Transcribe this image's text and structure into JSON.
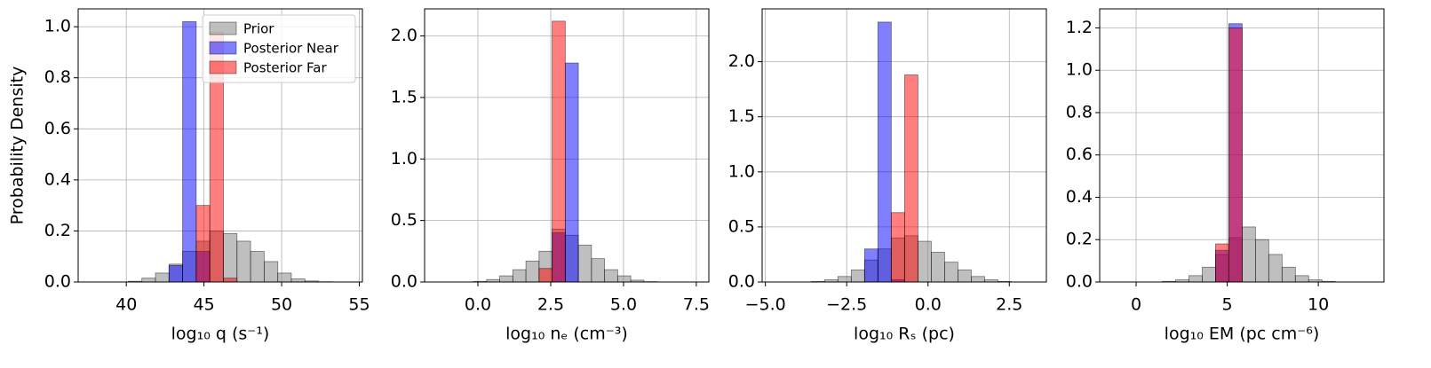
{
  "chart_data": [
    {
      "type": "histogram",
      "x_label": "log₁₀ q (s⁻¹)",
      "y_label": "Probability Density",
      "legend": "upper right",
      "grid": true,
      "xlim": [
        36.9,
        55.2
      ],
      "xticks": [
        40,
        45,
        50,
        55
      ],
      "ylim": [
        0,
        1.07
      ],
      "yticks": [
        {
          "value": 0,
          "label": "0.0"
        },
        0.2,
        0.4,
        0.6,
        0.8,
        {
          "value": 1,
          "label": "1.0"
        }
      ],
      "bins": [
        37.5,
        38.375,
        39.25,
        40.125,
        41,
        41.875,
        42.75,
        43.625,
        44.5,
        45.375,
        46.25,
        47.125,
        48,
        48.875,
        49.75,
        50.625,
        51.5,
        52.375,
        53.25,
        54.125,
        55
      ],
      "series": [
        {
          "name": "Prior",
          "color": "#808080",
          "values": [
            0,
            0,
            0,
            0.003,
            0.015,
            0.035,
            0.07,
            0.12,
            0.16,
            0.2,
            0.19,
            0.16,
            0.12,
            0.08,
            0.035,
            0.012,
            0.004,
            0.001,
            0,
            0
          ]
        },
        {
          "name": "Posterior Near",
          "color": "#0000ff",
          "values": [
            0,
            0,
            0,
            0,
            0,
            0,
            0.065,
            1.02,
            0.12,
            0,
            0,
            0,
            0,
            0,
            0,
            0,
            0,
            0,
            0,
            0
          ]
        },
        {
          "name": "Posterior Far",
          "color": "#ff0000",
          "values": [
            0,
            0,
            0,
            0,
            0,
            0,
            0,
            0,
            0.3,
            0.98,
            0.015,
            0,
            0,
            0,
            0,
            0,
            0,
            0,
            0,
            0
          ]
        }
      ]
    },
    {
      "type": "histogram",
      "x_label": "log₁₀ nₑ (cm⁻³)",
      "grid": true,
      "xlim": [
        -1.83,
        7.93
      ],
      "xticks": [
        {
          "value": 0,
          "label": "0.0"
        },
        2.5,
        {
          "value": 5,
          "label": "5.0"
        },
        7.5
      ],
      "ylim": [
        0,
        2.22
      ],
      "yticks": [
        {
          "value": 0,
          "label": "0.0"
        },
        0.5,
        {
          "value": 1,
          "label": "1.0"
        },
        1.5,
        {
          "value": 2,
          "label": "2.0"
        }
      ],
      "bins": [
        -1.5,
        -1.05,
        -0.6,
        -0.15,
        0.3,
        0.75,
        1.2,
        1.65,
        2.1,
        2.55,
        3,
        3.45,
        3.9,
        4.35,
        4.8,
        5.25,
        5.7,
        6.15,
        6.6,
        7.05,
        7.5
      ],
      "series": [
        {
          "name": "Prior",
          "color": "#808080",
          "values": [
            0,
            0,
            0,
            0.005,
            0.02,
            0.05,
            0.1,
            0.17,
            0.25,
            0.43,
            0.38,
            0.3,
            0.19,
            0.1,
            0.05,
            0.015,
            0.003,
            0,
            0,
            0
          ]
        },
        {
          "name": "Posterior Near",
          "color": "#0000ff",
          "values": [
            0,
            0,
            0,
            0,
            0,
            0,
            0,
            0,
            0,
            0.4,
            1.78,
            0,
            0,
            0,
            0,
            0,
            0,
            0,
            0,
            0
          ]
        },
        {
          "name": "Posterior Far",
          "color": "#ff0000",
          "values": [
            0,
            0,
            0,
            0,
            0,
            0,
            0,
            0,
            0.11,
            2.12,
            0,
            0,
            0,
            0,
            0,
            0,
            0,
            0,
            0,
            0
          ]
        }
      ]
    },
    {
      "type": "histogram",
      "x_label": "log₁₀ Rₛ (pc)",
      "grid": true,
      "xlim": [
        -5.1,
        3.64
      ],
      "xticks": [
        {
          "value": -5,
          "label": "−5.0"
        },
        {
          "value": -2.5,
          "label": "−2.5"
        },
        {
          "value": 0,
          "label": "0.0"
        },
        2.5
      ],
      "ylim": [
        0,
        2.48
      ],
      "yticks": [
        {
          "value": 0,
          "label": "0.0"
        },
        0.5,
        {
          "value": 1,
          "label": "1.0"
        },
        1.5,
        {
          "value": 2,
          "label": "2.0"
        }
      ],
      "bins": [
        -4,
        -3.59,
        -3.18,
        -2.77,
        -2.36,
        -1.95,
        -1.54,
        -1.13,
        -0.72,
        -0.31,
        0.1,
        0.51,
        0.92,
        1.33,
        1.74,
        2.15,
        2.56,
        2.97,
        3.38
      ],
      "series": [
        {
          "name": "Prior",
          "color": "#808080",
          "values": [
            0,
            0.005,
            0.02,
            0.05,
            0.11,
            0.2,
            0.3,
            0.4,
            0.42,
            0.37,
            0.27,
            0.18,
            0.11,
            0.05,
            0.02,
            0.005,
            0,
            0
          ]
        },
        {
          "name": "Posterior Near",
          "color": "#0000ff",
          "values": [
            0,
            0,
            0,
            0,
            0,
            0.3,
            2.36,
            0.02,
            0,
            0,
            0,
            0,
            0,
            0,
            0,
            0,
            0,
            0
          ]
        },
        {
          "name": "Posterior Far",
          "color": "#ff0000",
          "values": [
            0,
            0,
            0,
            0,
            0,
            0,
            0,
            0.63,
            1.88,
            0,
            0,
            0,
            0,
            0,
            0,
            0,
            0,
            0
          ]
        }
      ]
    },
    {
      "type": "histogram",
      "x_label": "log₁₀ EM (pc cm⁻⁶)",
      "grid": true,
      "xlim": [
        -2,
        13.6
      ],
      "xticks": [
        0,
        5,
        10
      ],
      "ylim": [
        0,
        1.29
      ],
      "yticks": [
        {
          "value": 0,
          "label": "0.0"
        },
        0.2,
        0.4,
        0.6,
        0.8,
        {
          "value": 1,
          "label": "1.0"
        },
        1.2
      ],
      "bins": [
        -0.75,
        -0.02,
        0.71,
        1.44,
        2.17,
        2.9,
        3.63,
        4.36,
        5.09,
        5.82,
        6.55,
        7.28,
        8.01,
        8.74,
        9.47,
        10.2,
        10.93,
        11.66,
        12.39,
        13.12
      ],
      "series": [
        {
          "name": "Prior",
          "color": "#808080",
          "values": [
            0,
            0,
            0,
            0.003,
            0.01,
            0.03,
            0.07,
            0.13,
            0.21,
            0.26,
            0.2,
            0.13,
            0.07,
            0.03,
            0.01,
            0.003,
            0,
            0,
            0
          ]
        },
        {
          "name": "Posterior Near",
          "color": "#0000ff",
          "values": [
            0,
            0,
            0,
            0,
            0,
            0,
            0,
            0.15,
            1.22,
            0,
            0,
            0,
            0,
            0,
            0,
            0,
            0,
            0,
            0
          ]
        },
        {
          "name": "Posterior Far",
          "color": "#ff0000",
          "values": [
            0,
            0,
            0,
            0,
            0,
            0,
            0,
            0.18,
            1.2,
            0,
            0,
            0,
            0,
            0,
            0,
            0,
            0,
            0,
            0
          ]
        }
      ]
    }
  ]
}
